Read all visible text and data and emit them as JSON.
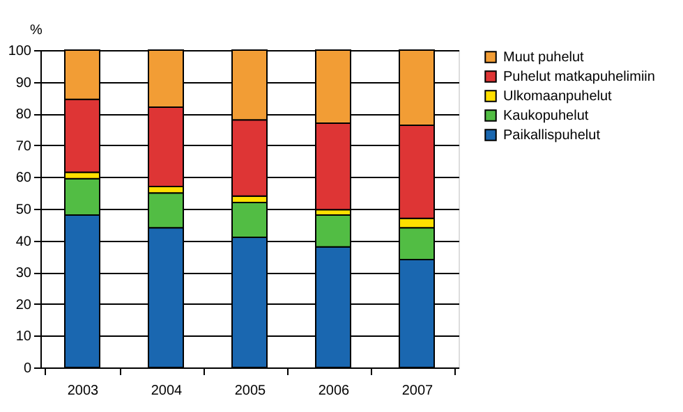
{
  "chart_data": {
    "type": "bar",
    "stacked": true,
    "ylabel": "%",
    "categories": [
      "2003",
      "2004",
      "2005",
      "2006",
      "2007"
    ],
    "series": [
      {
        "name": "Paikallispuhelut",
        "color": "#1a67b0",
        "values": [
          48,
          44,
          41,
          38,
          34
        ]
      },
      {
        "name": "Kaukopuhelut",
        "color": "#52bd44",
        "values": [
          11.5,
          11,
          11,
          10,
          10
        ]
      },
      {
        "name": "Ulkomaanpuhelut",
        "color": "#ffdf00",
        "values": [
          2,
          2,
          2,
          1.7,
          3
        ]
      },
      {
        "name": "Puhelut matkapuhelimiin",
        "color": "#de3535",
        "values": [
          23,
          25,
          24,
          27.3,
          29.3
        ]
      },
      {
        "name": "Muut puhelut",
        "color": "#f29d35",
        "values": [
          15.5,
          18,
          22,
          23,
          23.7
        ]
      }
    ],
    "ylim": [
      0,
      100
    ],
    "yticks": [
      0,
      10,
      20,
      30,
      40,
      50,
      60,
      70,
      80,
      90,
      100
    ],
    "grid": "y",
    "legend": "right"
  }
}
